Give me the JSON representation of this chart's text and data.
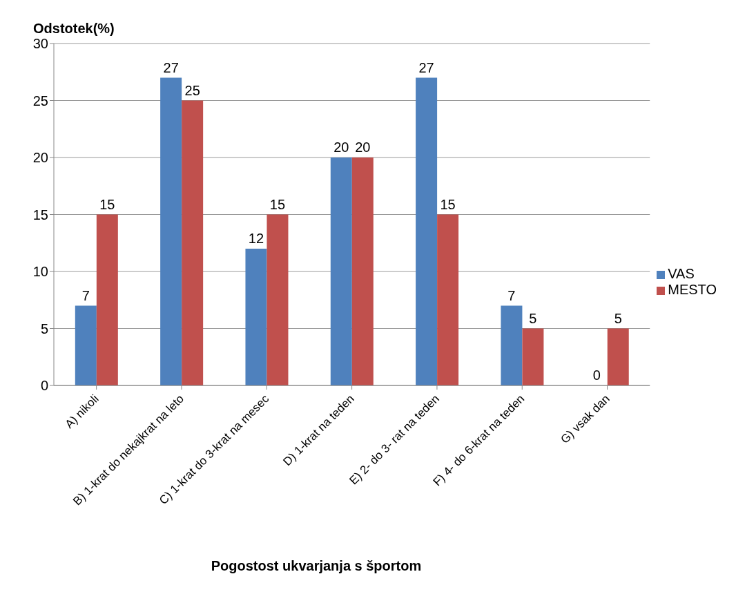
{
  "chart_data": {
    "type": "bar",
    "xlabel": "Pogostost ukvarjanja s športom",
    "ylabel": "Odstotek(%)",
    "categories": [
      "A)  nikoli",
      "B) 1-krat do nekajkrat na leto",
      "C) 1-krat do 3-krat na mesec",
      "D) 1-krat na teden",
      "E) 2- do 3- rat na teden",
      "F) 4- do 6-krat na teden",
      "G) vsak dan"
    ],
    "series": [
      {
        "name": "VAS",
        "color": "#4f81bd",
        "values": [
          7,
          27,
          12,
          20,
          27,
          7,
          0
        ]
      },
      {
        "name": "MESTO",
        "color": "#c0504d",
        "values": [
          15,
          25,
          15,
          20,
          15,
          5,
          5
        ]
      }
    ],
    "ylim": [
      0,
      30
    ],
    "yticks": [
      0,
      5,
      10,
      15,
      20,
      25,
      30
    ],
    "grid": "y",
    "legend": "right",
    "data_labels": true
  }
}
